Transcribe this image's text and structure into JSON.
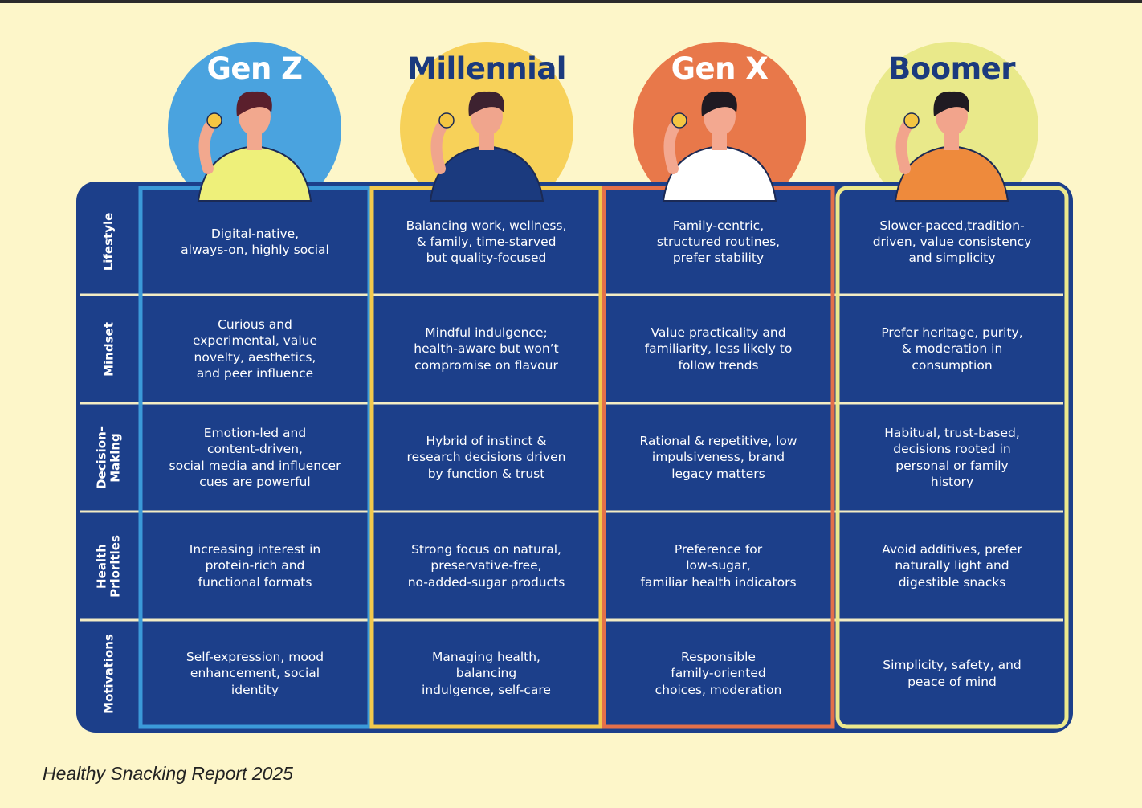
{
  "header": {
    "columns": [
      {
        "name": "Gen Z",
        "color": "#3b9ad9",
        "title_color": "#ffffff",
        "circle_color": "#4aa3df"
      },
      {
        "name": "Millennial",
        "color": "#f2c94c",
        "title_color": "#1b3a7e",
        "circle_color": "#f7d159"
      },
      {
        "name": "Gen X",
        "color": "#e4704a",
        "title_color": "#ffffff",
        "circle_color": "#e8784a"
      },
      {
        "name": "Boomer",
        "color": "#ece98c",
        "title_color": "#1b3a7e",
        "circle_color": "#e9e98a"
      }
    ]
  },
  "table": {
    "rows": [
      {
        "label": "Lifestyle",
        "cells": [
          "Digital-native,\nalways-on, highly social",
          "Balancing work, wellness,\n& family, time-starved\nbut quality-focused",
          "Family-centric,\nstructured routines,\nprefer stability",
          "Slower-paced,tradition-\ndriven, value consistency\nand simplicity"
        ]
      },
      {
        "label": "Mindset",
        "cells": [
          "Curious and\nexperimental, value\nnovelty, aesthetics,\nand peer influence",
          "Mindful indulgence;\nhealth-aware but won’t\ncompromise on flavour",
          "Value practicality and\nfamiliarity, less likely to\nfollow trends",
          "Prefer heritage, purity,\n& moderation in\nconsumption"
        ]
      },
      {
        "label": "Decision-\nMaking",
        "cells": [
          "Emotion-led and\ncontent-driven,\nsocial media and influencer\ncues are powerful",
          "Hybrid of instinct &\nresearch decisions driven\nby function & trust",
          "Rational &  repetitive, low\nimpulsiveness, brand\nlegacy matters",
          "Habitual, trust-based,\ndecisions rooted in\npersonal or family\nhistory"
        ]
      },
      {
        "label": "Health\nPriorities",
        "cells": [
          "Increasing interest in\nprotein-rich and\nfunctional formats",
          "Strong focus on natural,\npreservative-free,\nno-added-sugar products",
          "Preference for\nlow-sugar,\nfamiliar health indicators",
          "Avoid additives, prefer\nnaturally light and\ndigestible snacks"
        ]
      },
      {
        "label": "Motivations",
        "cells": [
          "Self-expression, mood\nenhancement, social\nidentity",
          "Managing health,\nbalancing\nindulgence, self-care",
          "Responsible\nfamily-oriented\nchoices, moderation",
          "Simplicity, safety, and\npeace of mind"
        ]
      }
    ]
  },
  "footer": {
    "source": "Healthy Snacking Report 2025"
  }
}
